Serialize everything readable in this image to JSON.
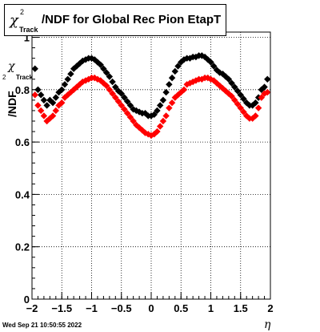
{
  "title": {
    "symbol": "χ",
    "superscript": "2",
    "subscript": "Track",
    "text": "/NDF for Global Rec Pion EtapT"
  },
  "yaxis": {
    "main": "/NDF",
    "symbol": "χ",
    "superscript": "2",
    "subscript": "Track"
  },
  "xaxis": {
    "label": "η"
  },
  "footer": "Wed Sep 21 10:50:55 2022",
  "colors": {
    "series1": "#000000",
    "series2": "#ff0000",
    "grid": "#000000"
  },
  "chart_data": {
    "type": "scatter",
    "xlim": [
      -2,
      2
    ],
    "ylim": [
      0,
      1.02
    ],
    "xticks": [
      -2,
      -1.5,
      -1,
      -0.5,
      0,
      0.5,
      1,
      1.5,
      2
    ],
    "xtick_labels": [
      "−2",
      "−1.5",
      "−1",
      "−0.5",
      "0",
      "0.5",
      "1",
      "1.5",
      "2"
    ],
    "yticks": [
      0,
      0.2,
      0.4,
      0.6,
      0.8,
      1
    ],
    "ytick_labels": [
      "0",
      "0.2",
      "0.4",
      "0.6",
      "0.8",
      "1"
    ],
    "grid": true,
    "x": [
      -1.95,
      -1.9,
      -1.85,
      -1.8,
      -1.75,
      -1.7,
      -1.65,
      -1.6,
      -1.55,
      -1.5,
      -1.45,
      -1.4,
      -1.35,
      -1.3,
      -1.25,
      -1.2,
      -1.15,
      -1.1,
      -1.05,
      -1.0,
      -0.95,
      -0.9,
      -0.85,
      -0.8,
      -0.75,
      -0.7,
      -0.65,
      -0.6,
      -0.55,
      -0.5,
      -0.45,
      -0.4,
      -0.35,
      -0.3,
      -0.25,
      -0.2,
      -0.15,
      -0.1,
      -0.05,
      0.0,
      0.05,
      0.1,
      0.15,
      0.2,
      0.25,
      0.3,
      0.35,
      0.4,
      0.45,
      0.5,
      0.55,
      0.6,
      0.65,
      0.7,
      0.75,
      0.8,
      0.85,
      0.9,
      0.95,
      1.0,
      1.05,
      1.1,
      1.15,
      1.2,
      1.25,
      1.3,
      1.35,
      1.4,
      1.45,
      1.5,
      1.55,
      1.6,
      1.65,
      1.7,
      1.75,
      1.8,
      1.85,
      1.9,
      1.95
    ],
    "series": [
      {
        "values": [
          0.88,
          0.8,
          0.78,
          0.76,
          0.74,
          0.76,
          0.75,
          0.77,
          0.79,
          0.8,
          0.82,
          0.84,
          0.86,
          0.88,
          0.89,
          0.9,
          0.91,
          0.915,
          0.92,
          0.92,
          0.915,
          0.905,
          0.895,
          0.88,
          0.865,
          0.85,
          0.83,
          0.81,
          0.795,
          0.785,
          0.77,
          0.755,
          0.74,
          0.725,
          0.72,
          0.715,
          0.71,
          0.71,
          0.7,
          0.7,
          0.705,
          0.72,
          0.74,
          0.76,
          0.79,
          0.82,
          0.845,
          0.87,
          0.89,
          0.905,
          0.915,
          0.92,
          0.92,
          0.925,
          0.925,
          0.93,
          0.93,
          0.925,
          0.915,
          0.905,
          0.89,
          0.875,
          0.865,
          0.86,
          0.85,
          0.84,
          0.825,
          0.81,
          0.795,
          0.78,
          0.765,
          0.75,
          0.74,
          0.74,
          0.75,
          0.77,
          0.8,
          0.81,
          0.84
        ]
      },
      {
        "values": [
          0.78,
          0.74,
          0.72,
          0.7,
          0.68,
          0.69,
          0.7,
          0.72,
          0.74,
          0.75,
          0.77,
          0.78,
          0.79,
          0.8,
          0.81,
          0.82,
          0.83,
          0.835,
          0.84,
          0.845,
          0.845,
          0.84,
          0.835,
          0.825,
          0.815,
          0.8,
          0.785,
          0.77,
          0.755,
          0.74,
          0.725,
          0.71,
          0.695,
          0.68,
          0.665,
          0.655,
          0.645,
          0.635,
          0.63,
          0.625,
          0.63,
          0.64,
          0.66,
          0.68,
          0.7,
          0.73,
          0.75,
          0.77,
          0.78,
          0.79,
          0.8,
          0.82,
          0.825,
          0.83,
          0.835,
          0.84,
          0.84,
          0.845,
          0.845,
          0.84,
          0.835,
          0.825,
          0.815,
          0.805,
          0.795,
          0.785,
          0.775,
          0.76,
          0.745,
          0.73,
          0.715,
          0.7,
          0.69,
          0.69,
          0.7,
          0.73,
          0.77,
          0.785,
          0.79
        ]
      }
    ]
  }
}
